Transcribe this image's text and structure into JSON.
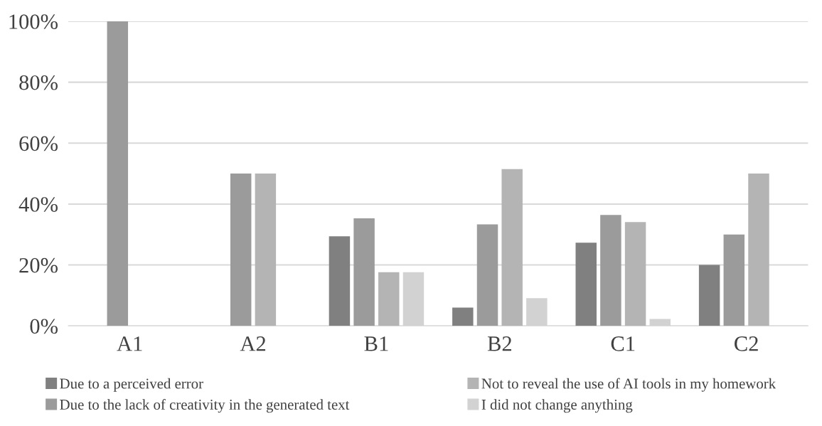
{
  "chart_data": {
    "type": "bar",
    "categories": [
      "A1",
      "A2",
      "B1",
      "B2",
      "C1",
      "C2"
    ],
    "series": [
      {
        "name": "Due to a perceived error",
        "color": "#808080",
        "values": [
          0,
          0,
          29.4,
          6,
          27.3,
          20
        ]
      },
      {
        "name": "Due to the lack of creativity in the generated text",
        "color": "#9b9b9b",
        "values": [
          100,
          50,
          35.3,
          33.3,
          36.4,
          30
        ]
      },
      {
        "name": "Not to reveal the use of AI tools in my homework",
        "color": "#b4b4b4",
        "values": [
          0,
          50,
          17.6,
          51.5,
          34.1,
          50
        ]
      },
      {
        "name": "I did not change anything",
        "color": "#d2d2d2",
        "values": [
          0,
          0,
          17.6,
          9.1,
          2.3,
          0
        ]
      }
    ],
    "ylim": [
      0,
      100
    ],
    "yticks": [
      {
        "value": 0,
        "label": "0%"
      },
      {
        "value": 20,
        "label": "20%"
      },
      {
        "value": 40,
        "label": "40%"
      },
      {
        "value": 60,
        "label": "60%"
      },
      {
        "value": 80,
        "label": "80%"
      },
      {
        "value": 100,
        "label": "100%"
      }
    ],
    "grid": "y",
    "legend": "bottom"
  }
}
